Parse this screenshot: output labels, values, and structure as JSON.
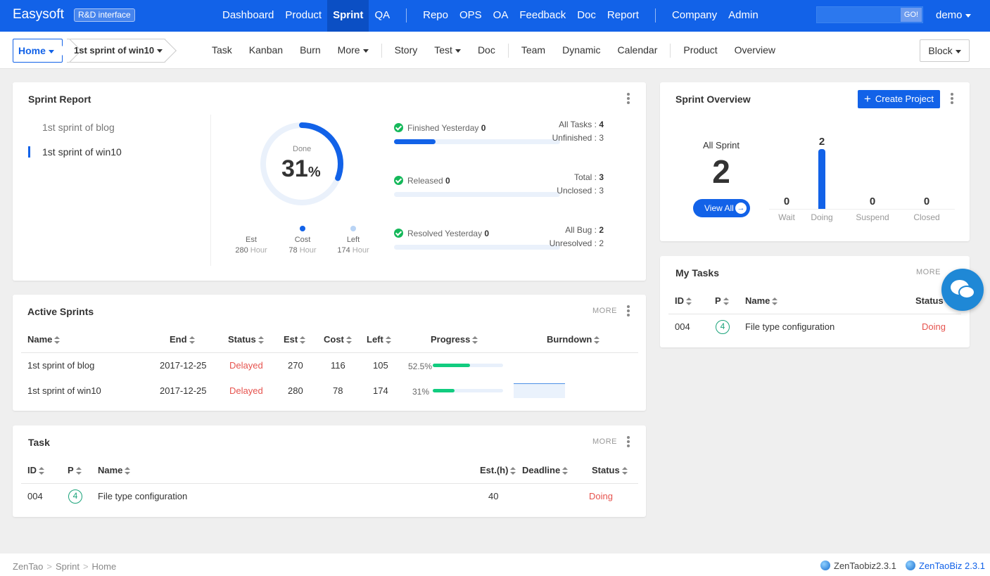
{
  "topnav": {
    "brand": "Easysoft",
    "badge": "R&D interface",
    "items": [
      "Dashboard",
      "Product",
      "Sprint",
      "QA"
    ],
    "items2": [
      "Repo",
      "OPS",
      "OA",
      "Feedback",
      "Doc",
      "Report"
    ],
    "items3": [
      "Company",
      "Admin"
    ],
    "active": "Sprint",
    "search_button": "GO!",
    "user": "demo"
  },
  "subnav": {
    "home": "Home",
    "sprint": "1st sprint of win10",
    "tabs1": [
      "Task",
      "Kanban",
      "Burn",
      "More"
    ],
    "tabs2": [
      "Story",
      "Test",
      "Doc"
    ],
    "tabs3": [
      "Team",
      "Dynamic",
      "Calendar"
    ],
    "tabs4": [
      "Product",
      "Overview"
    ],
    "block": "Block"
  },
  "sprint_report": {
    "title": "Sprint Report",
    "sprints": [
      "1st sprint of blog",
      "1st sprint of win10"
    ],
    "done_label": "Done",
    "done_pct": "31",
    "pct_sign": "%",
    "done_fraction": 0.31,
    "legend": [
      {
        "label": "Est",
        "value": "280",
        "unit": "Hour"
      },
      {
        "label": "Cost",
        "value": "78",
        "unit": "Hour"
      },
      {
        "label": "Left",
        "value": "174",
        "unit": "Hour"
      }
    ],
    "stats": [
      {
        "label": "Finished Yesterday",
        "value": "0",
        "fill": 0.25,
        "r1_label": "All Tasks :",
        "r1_value": "4",
        "r2": "Unfinished : 3"
      },
      {
        "label": "Released",
        "value": "0",
        "fill": 0,
        "r1_label": "Total :",
        "r1_value": "3",
        "r2": "Unclosed : 3"
      },
      {
        "label": "Resolved Yesterday",
        "value": "0",
        "fill": 0,
        "r1_label": "All Bug :",
        "r1_value": "2",
        "r2": "Unresolved : 2"
      }
    ],
    "colors": {
      "accent": "#1262e8",
      "track": "#eaf1fb",
      "left_dot": "#b9d4f5"
    }
  },
  "active_sprints": {
    "title": "Active Sprints",
    "more": "MORE",
    "headers": [
      "Name",
      "End",
      "Status",
      "Est",
      "Cost",
      "Left",
      "Progress",
      "Burndown"
    ],
    "rows": [
      {
        "name": "1st sprint of blog",
        "end": "2017-12-25",
        "status": "Delayed",
        "est": "270",
        "cost": "116",
        "left": "105",
        "progress": "52.5%",
        "progress_value": 0.525
      },
      {
        "name": "1st sprint of win10",
        "end": "2017-12-25",
        "status": "Delayed",
        "est": "280",
        "cost": "78",
        "left": "174",
        "progress": "31%",
        "progress_value": 0.31
      }
    ]
  },
  "task": {
    "title": "Task",
    "more": "MORE",
    "headers": [
      "ID",
      "P",
      "Name",
      "Est.(h)",
      "Deadline",
      "Status"
    ],
    "rows": [
      {
        "id": "004",
        "p": "4",
        "name": "File type configuration",
        "est": "40",
        "deadline": "",
        "status": "Doing"
      }
    ]
  },
  "sprint_overview": {
    "title": "Sprint Overview",
    "create_button": "Create Project",
    "all_label": "All Sprint",
    "all_value": "2",
    "view_all": "View All",
    "bars": [
      {
        "label": "Wait",
        "value": "0",
        "n": 0
      },
      {
        "label": "Doing",
        "value": "2",
        "n": 2
      },
      {
        "label": "Suspend",
        "value": "0",
        "n": 0
      },
      {
        "label": "Closed",
        "value": "0",
        "n": 0
      }
    ]
  },
  "my_tasks": {
    "title": "My Tasks",
    "more": "MORE",
    "headers": [
      "ID",
      "P",
      "Name",
      "Status"
    ],
    "rows": [
      {
        "id": "004",
        "p": "4",
        "name": "File type configuration",
        "status": "Doing"
      }
    ]
  },
  "footer": {
    "crumbs": [
      "ZenTao",
      "Sprint",
      "Home"
    ],
    "version1": "ZenTaobiz2.3.1",
    "version2": "ZenTaoBiz 2.3.1"
  },
  "icons": [
    "check-icon",
    "sort-icon",
    "kebab-icon",
    "globe-icon",
    "chat-icon",
    "arrow-right-icon",
    "plus-icon",
    "caret-down-icon"
  ]
}
